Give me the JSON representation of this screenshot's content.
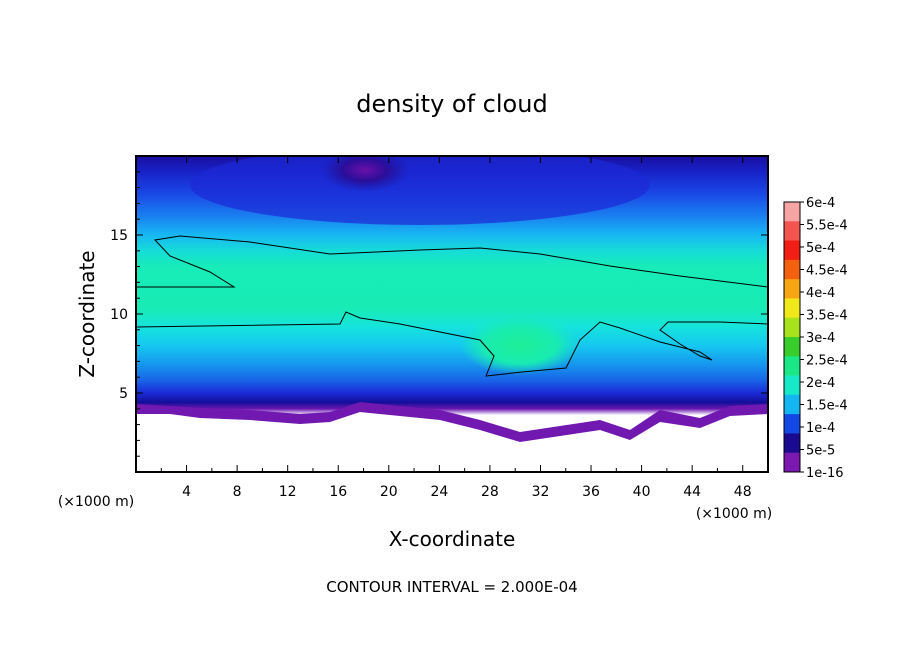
{
  "chart_data": {
    "type": "heatmap",
    "title": "density of cloud",
    "xlabel": "X-coordinate",
    "ylabel": "Z-coordinate",
    "x_unit_note": "(×1000 m)",
    "y_unit_note": "(×1000 m)",
    "xlim": [
      0,
      50
    ],
    "ylim": [
      0,
      20
    ],
    "x_ticks": [
      4,
      8,
      12,
      16,
      20,
      24,
      28,
      32,
      36,
      40,
      44,
      48
    ],
    "y_ticks": [
      5,
      10,
      15
    ],
    "footer": "CONTOUR INTERVAL = 2.000E-04",
    "colorbar": {
      "labels": [
        "6e-4",
        "5.5e-4",
        "5e-4",
        "4.5e-4",
        "4e-4",
        "3.5e-4",
        "3e-4",
        "2.5e-4",
        "2e-4",
        "1.5e-4",
        "1e-4",
        "5e-5",
        "1e-16"
      ],
      "colors": [
        "#f7a4a4",
        "#f2544f",
        "#f01e14",
        "#f26010",
        "#f5a612",
        "#f0e81a",
        "#a8e21c",
        "#38cc2c",
        "#1ae886",
        "#16e8c8",
        "#14b6f2",
        "#1448e6",
        "#1a0a90",
        "#7a18b0"
      ]
    },
    "levels": [
      1e-16,
      5e-05,
      0.0001,
      0.00015,
      0.0002,
      0.00025,
      0.0003,
      0.00035,
      0.0004,
      0.00045,
      0.0005,
      0.00055,
      0.0006
    ],
    "contour_levels": [
      0.0002
    ]
  }
}
